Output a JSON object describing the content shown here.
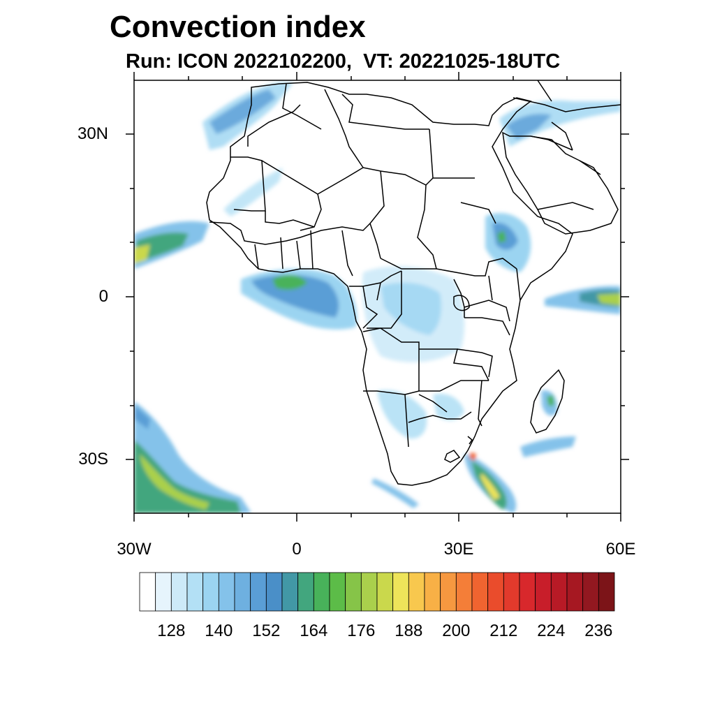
{
  "title": "Convection index",
  "subtitle": "Run: ICON 2022102200,  VT: 20221025-18UTC",
  "map": {
    "region": "Africa",
    "lon_range": [
      -30,
      60
    ],
    "lat_range": [
      -40,
      40
    ],
    "lat_labels": [
      "30N",
      "0",
      "30S"
    ],
    "lon_labels": [
      "30W",
      "0",
      "30E",
      "60E"
    ]
  },
  "colorbar": {
    "levels": [
      120,
      124,
      128,
      132,
      136,
      140,
      144,
      148,
      152,
      156,
      160,
      164,
      168,
      172,
      176,
      180,
      184,
      188,
      192,
      196,
      200,
      204,
      208,
      212,
      216,
      220,
      224,
      228,
      232,
      236,
      240
    ],
    "tick_labels": [
      "128",
      "140",
      "152",
      "164",
      "176",
      "188",
      "200",
      "212",
      "224",
      "236"
    ],
    "colors": [
      "#ffffff",
      "#e6f4fc",
      "#cdeaf8",
      "#b3e0f5",
      "#9bd4f1",
      "#84c2ea",
      "#6eb0e0",
      "#5a9ed6",
      "#4a8fc8",
      "#4298a6",
      "#42a67e",
      "#48b25a",
      "#5cbc48",
      "#86c448",
      "#aad04c",
      "#cad84c",
      "#eee45a",
      "#f8c84e",
      "#f8b046",
      "#f69840",
      "#f47e38",
      "#f06430",
      "#ea4c2c",
      "#e23a2c",
      "#d8282c",
      "#c81e2a",
      "#b81a26",
      "#a61822",
      "#921820",
      "#7c1418"
    ]
  }
}
